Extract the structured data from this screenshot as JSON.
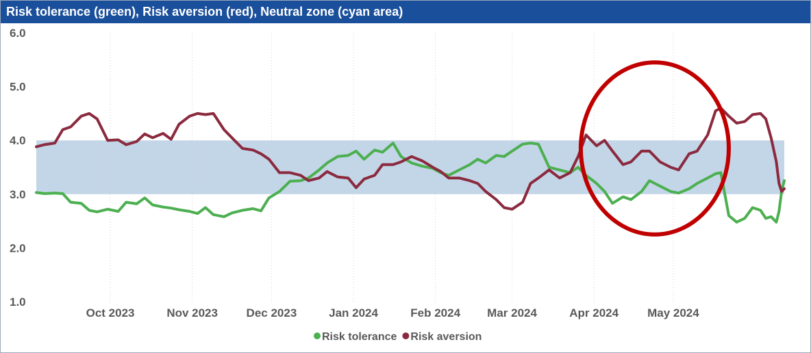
{
  "chart_data": {
    "type": "line",
    "title": "Risk tolerance (green), Risk aversion (red), Neutral zone (cyan area)",
    "xlabel": "",
    "ylabel": "",
    "ylim": [
      1.0,
      6.0
    ],
    "yticks": [
      "1.0",
      "2.0",
      "3.0",
      "4.0",
      "5.0",
      "6.0"
    ],
    "xticks": [
      {
        "label": "Oct 2023",
        "date": "2023-10-01"
      },
      {
        "label": "Nov 2023",
        "date": "2023-11-01"
      },
      {
        "label": "Dec 2023",
        "date": "2023-12-01"
      },
      {
        "label": "Jan 2024",
        "date": "2024-01-01"
      },
      {
        "label": "Feb 2024",
        "date": "2024-02-01"
      },
      {
        "label": "Mar 2024",
        "date": "2024-03-01"
      },
      {
        "label": "Apr 2024",
        "date": "2024-04-01"
      },
      {
        "label": "May 2024",
        "date": "2024-05-01"
      }
    ],
    "xlim": [
      "2023-09-03",
      "2024-06-12"
    ],
    "grid": "vertical dotted",
    "legend_position": "bottom-center",
    "neutral_zone": {
      "y0": 3.0,
      "y1": 4.0,
      "color": "#c3d6e8"
    },
    "highlight": {
      "shape": "ellipse",
      "color": "#c00000",
      "date_center": "2024-04-24",
      "y_center": 3.85,
      "date_half_width_days": 28,
      "y_half_height": 1.6
    },
    "series": [
      {
        "name": "Risk tolerance",
        "color": "#4caf50",
        "points": [
          [
            "2023-09-03",
            3.03
          ],
          [
            "2023-09-06",
            3.01
          ],
          [
            "2023-09-10",
            3.02
          ],
          [
            "2023-09-13",
            3.01
          ],
          [
            "2023-09-16",
            2.85
          ],
          [
            "2023-09-20",
            2.83
          ],
          [
            "2023-09-23",
            2.7
          ],
          [
            "2023-09-26",
            2.67
          ],
          [
            "2023-09-30",
            2.72
          ],
          [
            "2023-10-04",
            2.68
          ],
          [
            "2023-10-07",
            2.85
          ],
          [
            "2023-10-11",
            2.82
          ],
          [
            "2023-10-14",
            2.93
          ],
          [
            "2023-10-17",
            2.8
          ],
          [
            "2023-10-21",
            2.76
          ],
          [
            "2023-10-24",
            2.74
          ],
          [
            "2023-10-27",
            2.71
          ],
          [
            "2023-10-31",
            2.68
          ],
          [
            "2023-11-03",
            2.64
          ],
          [
            "2023-11-06",
            2.75
          ],
          [
            "2023-11-09",
            2.62
          ],
          [
            "2023-11-13",
            2.58
          ],
          [
            "2023-11-16",
            2.65
          ],
          [
            "2023-11-20",
            2.7
          ],
          [
            "2023-11-24",
            2.73
          ],
          [
            "2023-11-27",
            2.69
          ],
          [
            "2023-11-30",
            2.93
          ],
          [
            "2023-12-04",
            3.05
          ],
          [
            "2023-12-08",
            3.24
          ],
          [
            "2023-12-12",
            3.25
          ],
          [
            "2023-12-15",
            3.3
          ],
          [
            "2023-12-19",
            3.45
          ],
          [
            "2023-12-22",
            3.58
          ],
          [
            "2023-12-26",
            3.7
          ],
          [
            "2023-12-30",
            3.72
          ],
          [
            "2024-01-02",
            3.8
          ],
          [
            "2024-01-05",
            3.65
          ],
          [
            "2024-01-09",
            3.82
          ],
          [
            "2024-01-12",
            3.78
          ],
          [
            "2024-01-16",
            3.95
          ],
          [
            "2024-01-19",
            3.7
          ],
          [
            "2024-01-23",
            3.58
          ],
          [
            "2024-01-27",
            3.52
          ],
          [
            "2024-01-31",
            3.48
          ],
          [
            "2024-02-03",
            3.4
          ],
          [
            "2024-02-06",
            3.35
          ],
          [
            "2024-02-10",
            3.45
          ],
          [
            "2024-02-14",
            3.55
          ],
          [
            "2024-02-17",
            3.65
          ],
          [
            "2024-02-20",
            3.58
          ],
          [
            "2024-02-24",
            3.72
          ],
          [
            "2024-02-27",
            3.7
          ],
          [
            "2024-03-01",
            3.8
          ],
          [
            "2024-03-05",
            3.93
          ],
          [
            "2024-03-08",
            3.95
          ],
          [
            "2024-03-11",
            3.93
          ],
          [
            "2024-03-15",
            3.5
          ],
          [
            "2024-03-19",
            3.45
          ],
          [
            "2024-03-23",
            3.4
          ],
          [
            "2024-03-26",
            3.5
          ],
          [
            "2024-03-29",
            3.35
          ],
          [
            "2024-04-02",
            3.2
          ],
          [
            "2024-04-05",
            3.05
          ],
          [
            "2024-04-08",
            2.83
          ],
          [
            "2024-04-12",
            2.95
          ],
          [
            "2024-04-15",
            2.9
          ],
          [
            "2024-04-19",
            3.05
          ],
          [
            "2024-04-22",
            3.25
          ],
          [
            "2024-04-26",
            3.15
          ],
          [
            "2024-04-30",
            3.05
          ],
          [
            "2024-05-03",
            3.02
          ],
          [
            "2024-05-07",
            3.1
          ],
          [
            "2024-05-10",
            3.2
          ],
          [
            "2024-05-14",
            3.3
          ],
          [
            "2024-05-17",
            3.38
          ],
          [
            "2024-05-19",
            3.4
          ],
          [
            "2024-05-22",
            2.6
          ],
          [
            "2024-05-25",
            2.48
          ],
          [
            "2024-05-28",
            2.55
          ],
          [
            "2024-05-31",
            2.75
          ],
          [
            "2024-06-03",
            2.7
          ],
          [
            "2024-06-05",
            2.55
          ],
          [
            "2024-06-07",
            2.58
          ],
          [
            "2024-06-09",
            2.48
          ],
          [
            "2024-06-10",
            2.68
          ],
          [
            "2024-06-11",
            3.05
          ],
          [
            "2024-06-12",
            3.25
          ]
        ]
      },
      {
        "name": "Risk aversion",
        "color": "#8b2a3e",
        "points": [
          [
            "2023-09-03",
            3.88
          ],
          [
            "2023-09-06",
            3.92
          ],
          [
            "2023-09-10",
            3.95
          ],
          [
            "2023-09-13",
            4.2
          ],
          [
            "2023-09-16",
            4.25
          ],
          [
            "2023-09-20",
            4.45
          ],
          [
            "2023-09-23",
            4.5
          ],
          [
            "2023-09-26",
            4.4
          ],
          [
            "2023-09-30",
            4.0
          ],
          [
            "2023-10-04",
            4.01
          ],
          [
            "2023-10-07",
            3.92
          ],
          [
            "2023-10-11",
            3.98
          ],
          [
            "2023-10-14",
            4.12
          ],
          [
            "2023-10-17",
            4.05
          ],
          [
            "2023-10-21",
            4.13
          ],
          [
            "2023-10-24",
            4.02
          ],
          [
            "2023-10-27",
            4.3
          ],
          [
            "2023-10-31",
            4.45
          ],
          [
            "2023-11-03",
            4.5
          ],
          [
            "2023-11-06",
            4.48
          ],
          [
            "2023-11-09",
            4.5
          ],
          [
            "2023-11-13",
            4.2
          ],
          [
            "2023-11-16",
            4.05
          ],
          [
            "2023-11-20",
            3.85
          ],
          [
            "2023-11-24",
            3.82
          ],
          [
            "2023-11-27",
            3.75
          ],
          [
            "2023-11-30",
            3.65
          ],
          [
            "2023-12-04",
            3.4
          ],
          [
            "2023-12-08",
            3.4
          ],
          [
            "2023-12-12",
            3.35
          ],
          [
            "2023-12-15",
            3.25
          ],
          [
            "2023-12-19",
            3.3
          ],
          [
            "2023-12-22",
            3.42
          ],
          [
            "2023-12-26",
            3.32
          ],
          [
            "2023-12-30",
            3.3
          ],
          [
            "2024-01-02",
            3.12
          ],
          [
            "2024-01-05",
            3.28
          ],
          [
            "2024-01-09",
            3.35
          ],
          [
            "2024-01-12",
            3.55
          ],
          [
            "2024-01-16",
            3.55
          ],
          [
            "2024-01-19",
            3.6
          ],
          [
            "2024-01-23",
            3.7
          ],
          [
            "2024-01-27",
            3.62
          ],
          [
            "2024-01-31",
            3.5
          ],
          [
            "2024-02-03",
            3.42
          ],
          [
            "2024-02-06",
            3.3
          ],
          [
            "2024-02-10",
            3.3
          ],
          [
            "2024-02-14",
            3.25
          ],
          [
            "2024-02-17",
            3.2
          ],
          [
            "2024-02-20",
            3.05
          ],
          [
            "2024-02-24",
            2.9
          ],
          [
            "2024-02-27",
            2.75
          ],
          [
            "2024-03-01",
            2.72
          ],
          [
            "2024-03-05",
            2.85
          ],
          [
            "2024-03-08",
            3.2
          ],
          [
            "2024-03-11",
            3.3
          ],
          [
            "2024-03-15",
            3.45
          ],
          [
            "2024-03-19",
            3.3
          ],
          [
            "2024-03-23",
            3.4
          ],
          [
            "2024-03-26",
            3.7
          ],
          [
            "2024-03-29",
            4.1
          ],
          [
            "2024-04-02",
            3.9
          ],
          [
            "2024-04-05",
            4.0
          ],
          [
            "2024-04-08",
            3.8
          ],
          [
            "2024-04-12",
            3.55
          ],
          [
            "2024-04-15",
            3.6
          ],
          [
            "2024-04-19",
            3.8
          ],
          [
            "2024-04-22",
            3.8
          ],
          [
            "2024-04-26",
            3.6
          ],
          [
            "2024-04-30",
            3.5
          ],
          [
            "2024-05-03",
            3.45
          ],
          [
            "2024-05-07",
            3.75
          ],
          [
            "2024-05-10",
            3.8
          ],
          [
            "2024-05-14",
            4.1
          ],
          [
            "2024-05-17",
            4.55
          ],
          [
            "2024-05-19",
            4.6
          ],
          [
            "2024-05-22",
            4.45
          ],
          [
            "2024-05-25",
            4.32
          ],
          [
            "2024-05-28",
            4.35
          ],
          [
            "2024-05-31",
            4.48
          ],
          [
            "2024-06-03",
            4.5
          ],
          [
            "2024-06-05",
            4.4
          ],
          [
            "2024-06-07",
            4.05
          ],
          [
            "2024-06-09",
            3.6
          ],
          [
            "2024-06-10",
            3.2
          ],
          [
            "2024-06-11",
            3.05
          ],
          [
            "2024-06-12",
            3.1
          ]
        ]
      }
    ]
  }
}
